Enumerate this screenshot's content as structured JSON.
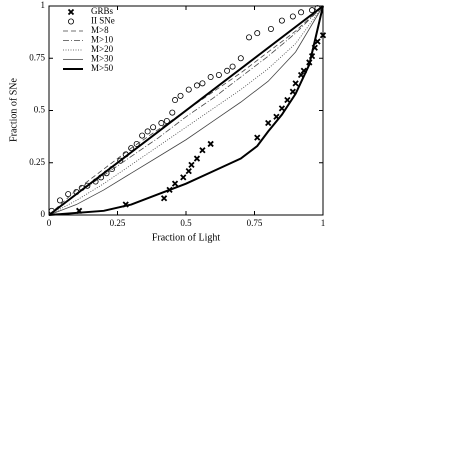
{
  "chart_data": {
    "type": "line",
    "xlabel": "Fraction of Light",
    "ylabel": "Fraction of SNe",
    "xlim": [
      0,
      1
    ],
    "ylim": [
      0,
      1
    ],
    "xticks": [
      0,
      0.25,
      0.5,
      0.75,
      1
    ],
    "yticks": [
      0,
      0.25,
      0.5,
      0.75,
      1
    ],
    "legend": "upper left",
    "series": [
      {
        "name": "GRBs",
        "color": "#000000",
        "marker": "x",
        "line_style": "none",
        "x": [
          0.11,
          0.28,
          0.42,
          0.44,
          0.46,
          0.49,
          0.51,
          0.52,
          0.54,
          0.56,
          0.59,
          0.76,
          0.8,
          0.83,
          0.85,
          0.87,
          0.89,
          0.9,
          0.92,
          0.93,
          0.95,
          0.96,
          0.97,
          0.98,
          1.0
        ],
        "values": [
          0.02,
          0.05,
          0.08,
          0.12,
          0.15,
          0.18,
          0.21,
          0.24,
          0.27,
          0.31,
          0.34,
          0.37,
          0.44,
          0.47,
          0.51,
          0.55,
          0.59,
          0.63,
          0.67,
          0.69,
          0.73,
          0.76,
          0.8,
          0.83,
          0.86
        ]
      },
      {
        "name": "II SNe",
        "color": "#000000",
        "marker": "circle",
        "line_style": "none",
        "x": [
          0.01,
          0.04,
          0.07,
          0.1,
          0.12,
          0.14,
          0.17,
          0.19,
          0.21,
          0.23,
          0.26,
          0.28,
          0.3,
          0.32,
          0.34,
          0.36,
          0.38,
          0.41,
          0.43,
          0.45,
          0.46,
          0.48,
          0.51,
          0.54,
          0.56,
          0.59,
          0.62,
          0.65,
          0.67,
          0.7,
          0.73,
          0.76,
          0.81,
          0.85,
          0.89,
          0.92,
          0.96,
          0.98
        ],
        "values": [
          0.02,
          0.07,
          0.1,
          0.11,
          0.13,
          0.14,
          0.16,
          0.18,
          0.2,
          0.22,
          0.26,
          0.29,
          0.32,
          0.34,
          0.38,
          0.4,
          0.42,
          0.44,
          0.45,
          0.49,
          0.55,
          0.57,
          0.6,
          0.62,
          0.63,
          0.66,
          0.67,
          0.69,
          0.71,
          0.75,
          0.85,
          0.87,
          0.89,
          0.93,
          0.95,
          0.97,
          0.98,
          0.99
        ]
      },
      {
        "name": "M>8",
        "color": "#444444",
        "marker": "none",
        "line_style": "dashed",
        "x": [
          0,
          0.1,
          0.2,
          0.3,
          0.4,
          0.5,
          0.6,
          0.7,
          0.8,
          0.9,
          1
        ],
        "values": [
          0,
          0.12,
          0.22,
          0.32,
          0.41,
          0.5,
          0.59,
          0.68,
          0.78,
          0.88,
          1
        ]
      },
      {
        "name": "M>10",
        "color": "#444444",
        "marker": "none",
        "line_style": "dashdot",
        "x": [
          0,
          0.1,
          0.2,
          0.3,
          0.4,
          0.5,
          0.6,
          0.7,
          0.8,
          0.9,
          1
        ],
        "values": [
          0,
          0.1,
          0.19,
          0.28,
          0.37,
          0.47,
          0.56,
          0.66,
          0.76,
          0.87,
          1
        ]
      },
      {
        "name": "M>20",
        "color": "#444444",
        "marker": "none",
        "line_style": "dotted",
        "x": [
          0,
          0.1,
          0.2,
          0.3,
          0.4,
          0.5,
          0.6,
          0.7,
          0.8,
          0.9,
          1
        ],
        "values": [
          0,
          0.07,
          0.15,
          0.24,
          0.33,
          0.42,
          0.51,
          0.6,
          0.7,
          0.82,
          1
        ]
      },
      {
        "name": "M>30",
        "color": "#444444",
        "marker": "none",
        "line_style": "thin",
        "x": [
          0,
          0.1,
          0.2,
          0.3,
          0.4,
          0.5,
          0.6,
          0.7,
          0.8,
          0.9,
          1
        ],
        "values": [
          0,
          0.05,
          0.12,
          0.2,
          0.28,
          0.36,
          0.45,
          0.54,
          0.64,
          0.78,
          1
        ]
      },
      {
        "name": "M>50",
        "color": "#000000",
        "marker": "none",
        "line_style": "thick",
        "x": [
          0,
          0.2,
          0.3,
          0.4,
          0.5,
          0.6,
          0.7,
          0.76,
          0.8,
          0.85,
          0.9,
          0.95,
          1
        ],
        "values": [
          0,
          0.02,
          0.05,
          0.1,
          0.15,
          0.21,
          0.27,
          0.33,
          0.4,
          0.48,
          0.58,
          0.72,
          1
        ]
      },
      {
        "color": "#000000",
        "marker": "none",
        "line_style": "thick",
        "x": [
          0,
          1
        ],
        "values": [
          0,
          1
        ]
      }
    ]
  }
}
